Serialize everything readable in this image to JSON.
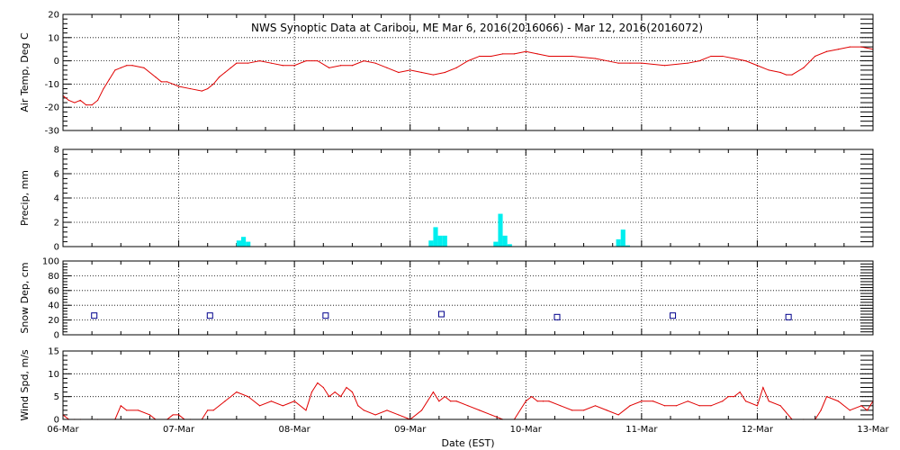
{
  "chart_data": {
    "title": "NWS Synoptic Data at Caribou, ME   Mar  6, 2016(2016066) - Mar 12, 2016(2016072)",
    "xlabel": "Date (EST)",
    "x_day_labels": [
      "06-Mar",
      "07-Mar",
      "08-Mar",
      "09-Mar",
      "10-Mar",
      "11-Mar",
      "12-Mar",
      "13-Mar"
    ],
    "x_range_days": [
      0,
      7
    ],
    "grid": "dotted",
    "panels": [
      {
        "key": "temp",
        "type": "line",
        "ylabel": "Air Temp, Deg C",
        "ylim": [
          -30,
          20
        ],
        "yticks": [
          -30,
          -20,
          -10,
          0,
          10,
          20
        ],
        "color": "#e00000",
        "series": {
          "name": "",
          "x": [
            0.0,
            0.05,
            0.1,
            0.15,
            0.2,
            0.25,
            0.3,
            0.35,
            0.4,
            0.45,
            0.5,
            0.55,
            0.6,
            0.7,
            0.8,
            0.85,
            0.9,
            1.0,
            1.1,
            1.2,
            1.25,
            1.3,
            1.35,
            1.4,
            1.45,
            1.5,
            1.6,
            1.7,
            1.8,
            1.9,
            2.0,
            2.1,
            2.2,
            2.3,
            2.4,
            2.5,
            2.6,
            2.7,
            2.8,
            2.9,
            3.0,
            3.1,
            3.2,
            3.3,
            3.4,
            3.5,
            3.6,
            3.7,
            3.8,
            3.9,
            4.0,
            4.1,
            4.2,
            4.4,
            4.6,
            4.8,
            4.9,
            5.0,
            5.2,
            5.4,
            5.5,
            5.6,
            5.7,
            5.8,
            5.9,
            6.0,
            6.1,
            6.2,
            6.25,
            6.3,
            6.4,
            6.5,
            6.6,
            6.7,
            6.8,
            6.9,
            7.0
          ],
          "y": [
            -15,
            -17,
            -18,
            -17,
            -19,
            -19,
            -17,
            -12,
            -8,
            -4,
            -3,
            -2,
            -2,
            -3,
            -7,
            -9,
            -9,
            -11,
            -12,
            -13,
            -12,
            -10,
            -7,
            -5,
            -3,
            -1,
            -1,
            0,
            -1,
            -2,
            -2,
            0,
            0,
            -3,
            -2,
            -2,
            0,
            -1,
            -3,
            -5,
            -4,
            -5,
            -6,
            -5,
            -3,
            0,
            2,
            2,
            3,
            3,
            4,
            3,
            2,
            2,
            1,
            -1,
            -1,
            -1,
            -2,
            -1,
            0,
            2,
            2,
            1,
            0,
            -2,
            -4,
            -5,
            -6,
            -6,
            -3,
            2,
            4,
            5,
            6,
            6,
            5
          ]
        }
      },
      {
        "key": "precip",
        "type": "bar",
        "ylabel": "Precip, mm",
        "ylim": [
          0,
          8
        ],
        "yticks": [
          0,
          2,
          4,
          6,
          8
        ],
        "color": "#00eeee",
        "series": {
          "name": "",
          "x": [
            1.52,
            1.56,
            1.6,
            3.18,
            3.22,
            3.26,
            3.3,
            3.74,
            3.78,
            3.82,
            3.86,
            4.8,
            4.84,
            4.88
          ],
          "y": [
            0.5,
            0.8,
            0.4,
            0.5,
            1.6,
            0.9,
            0.9,
            0.4,
            2.7,
            0.9,
            0.2,
            0.6,
            1.4,
            0.1
          ]
        }
      },
      {
        "key": "snow",
        "type": "scatter",
        "ylabel": "Snow Dep, cm",
        "ylim": [
          0,
          100
        ],
        "yticks": [
          0,
          20,
          40,
          60,
          80,
          100
        ],
        "color": "#00008b",
        "series": {
          "name": "",
          "x": [
            0.27,
            1.27,
            2.27,
            3.27,
            4.27,
            5.27,
            6.27
          ],
          "y": [
            26,
            26,
            26,
            28,
            24,
            26,
            24
          ]
        }
      },
      {
        "key": "wind",
        "type": "line",
        "ylabel": "Wind Spd, m/s",
        "ylim": [
          0,
          15
        ],
        "yticks": [
          0,
          5,
          10,
          15
        ],
        "color": "#e00000",
        "series": {
          "name": "",
          "x": [
            0.0,
            0.05,
            0.1,
            0.15,
            0.3,
            0.45,
            0.5,
            0.55,
            0.65,
            0.75,
            0.8,
            0.9,
            0.95,
            1.0,
            1.05,
            1.1,
            1.2,
            1.25,
            1.3,
            1.4,
            1.5,
            1.6,
            1.7,
            1.8,
            1.9,
            2.0,
            2.1,
            2.15,
            2.2,
            2.25,
            2.3,
            2.35,
            2.4,
            2.45,
            2.5,
            2.55,
            2.6,
            2.7,
            2.8,
            2.9,
            3.0,
            3.1,
            3.2,
            3.25,
            3.3,
            3.35,
            3.4,
            3.5,
            3.6,
            3.7,
            3.8,
            3.9,
            4.0,
            4.05,
            4.1,
            4.15,
            4.2,
            4.3,
            4.4,
            4.5,
            4.6,
            4.7,
            4.8,
            4.9,
            5.0,
            5.1,
            5.2,
            5.3,
            5.4,
            5.5,
            5.6,
            5.7,
            5.75,
            5.8,
            5.85,
            5.9,
            6.0,
            6.05,
            6.1,
            6.2,
            6.3,
            6.4,
            6.5,
            6.55,
            6.6,
            6.7,
            6.8,
            6.9,
            6.95,
            7.0
          ],
          "y": [
            1,
            0,
            0,
            0,
            0,
            0,
            3,
            2,
            2,
            1,
            0,
            0,
            1,
            1,
            0,
            0,
            0,
            2,
            2,
            4,
            6,
            5,
            3,
            4,
            3,
            4,
            2,
            6,
            8,
            7,
            5,
            6,
            5,
            7,
            6,
            3,
            2,
            1,
            2,
            1,
            0,
            2,
            6,
            4,
            5,
            4,
            4,
            3,
            2,
            1,
            0,
            0,
            4,
            5,
            4,
            4,
            4,
            3,
            2,
            2,
            3,
            2,
            1,
            3,
            4,
            4,
            3,
            3,
            4,
            3,
            3,
            4,
            5,
            5,
            6,
            4,
            3,
            7,
            4,
            3,
            0,
            0,
            0,
            2,
            5,
            4,
            2,
            3,
            2,
            4
          ]
        }
      }
    ]
  }
}
